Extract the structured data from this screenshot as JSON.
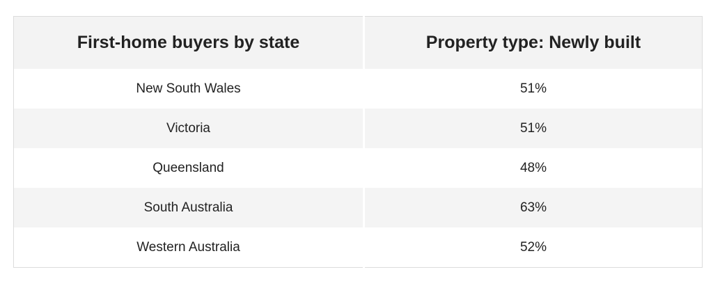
{
  "table": {
    "headers": [
      "First-home buyers by state",
      "Property type: Newly built"
    ],
    "rows": [
      [
        "New South Wales",
        "51%"
      ],
      [
        "Victoria",
        "51%"
      ],
      [
        "Queensland",
        "48%"
      ],
      [
        "South Australia",
        "63%"
      ],
      [
        "Western Australia",
        "52%"
      ]
    ]
  }
}
